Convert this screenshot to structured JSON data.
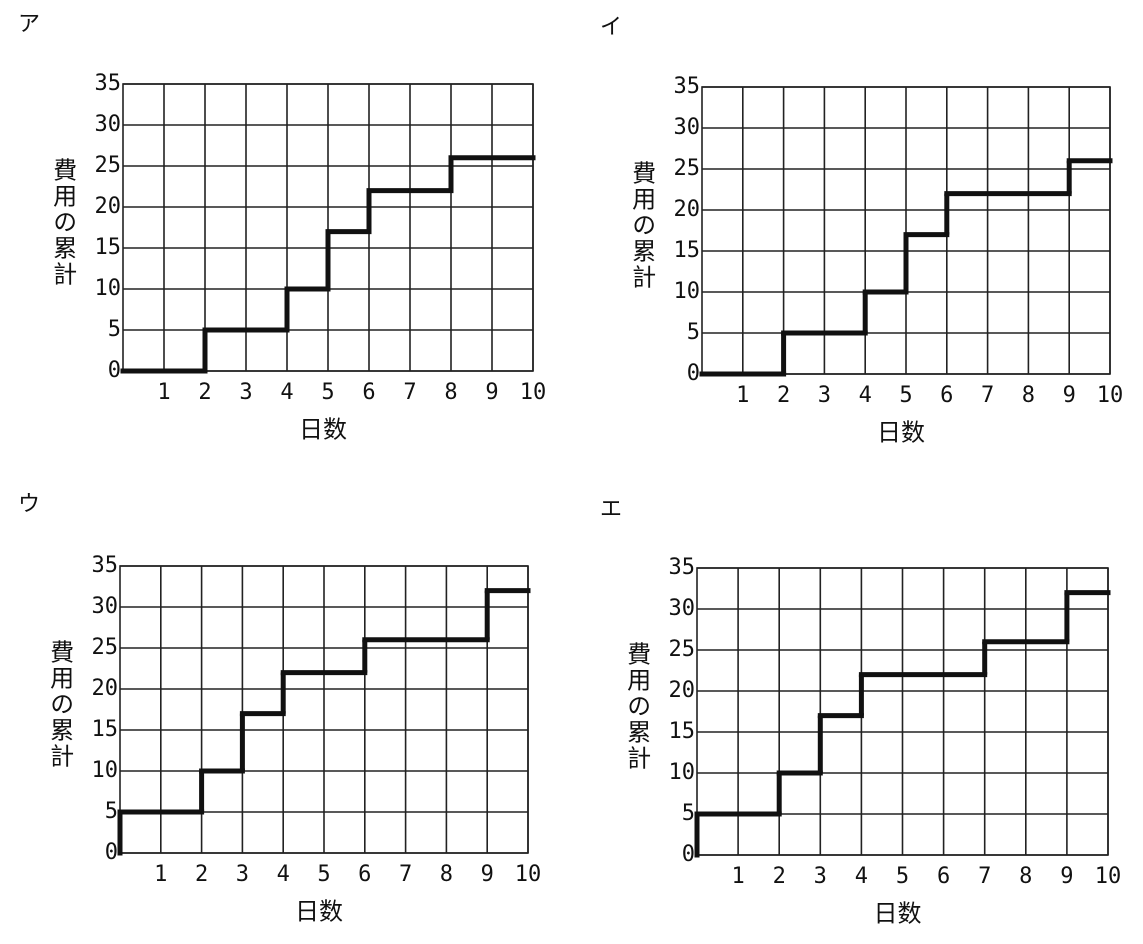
{
  "chart_data": [
    {
      "type": "step",
      "title": "ア",
      "xlabel": "日数",
      "ylabel": "費用の累計",
      "x": [
        0,
        2,
        4,
        5,
        6,
        8
      ],
      "values": [
        0,
        5,
        10,
        17,
        22,
        26
      ],
      "color": "#111",
      "xlim": [
        0,
        10
      ],
      "ylim": [
        0,
        35
      ],
      "xticks": [
        1,
        2,
        3,
        4,
        5,
        6,
        7,
        8,
        9,
        10
      ],
      "yticks": [
        0,
        5,
        10,
        15,
        20,
        25,
        30,
        35
      ],
      "grid": true
    },
    {
      "type": "step",
      "title": "イ",
      "xlabel": "日数",
      "ylabel": "費用の累計",
      "x": [
        0,
        2,
        4,
        5,
        6,
        9
      ],
      "values": [
        0,
        5,
        10,
        17,
        22,
        26
      ],
      "color": "#111",
      "xlim": [
        0,
        10
      ],
      "ylim": [
        0,
        35
      ],
      "xticks": [
        1,
        2,
        3,
        4,
        5,
        6,
        7,
        8,
        9,
        10
      ],
      "yticks": [
        0,
        5,
        10,
        15,
        20,
        25,
        30,
        35
      ],
      "grid": true
    },
    {
      "type": "step",
      "title": "ウ",
      "xlabel": "日数",
      "ylabel": "費用の累計",
      "x": [
        0,
        0,
        2,
        3,
        4,
        6,
        9
      ],
      "values": [
        0,
        5,
        10,
        17,
        22,
        26,
        32
      ],
      "color": "#111",
      "xlim": [
        0,
        10
      ],
      "ylim": [
        0,
        35
      ],
      "xticks": [
        1,
        2,
        3,
        4,
        5,
        6,
        7,
        8,
        9,
        10
      ],
      "yticks": [
        0,
        5,
        10,
        15,
        20,
        25,
        30,
        35
      ],
      "grid": true
    },
    {
      "type": "step",
      "title": "エ",
      "xlabel": "日数",
      "ylabel": "費用の累計",
      "x": [
        0,
        0,
        2,
        3,
        4,
        7,
        9
      ],
      "values": [
        0,
        5,
        10,
        17,
        22,
        26,
        32
      ],
      "color": "#111",
      "xlim": [
        0,
        10
      ],
      "ylim": [
        0,
        35
      ],
      "xticks": [
        1,
        2,
        3,
        4,
        5,
        6,
        7,
        8,
        9,
        10
      ],
      "yticks": [
        0,
        5,
        10,
        15,
        20,
        25,
        30,
        35
      ],
      "grid": true
    }
  ]
}
